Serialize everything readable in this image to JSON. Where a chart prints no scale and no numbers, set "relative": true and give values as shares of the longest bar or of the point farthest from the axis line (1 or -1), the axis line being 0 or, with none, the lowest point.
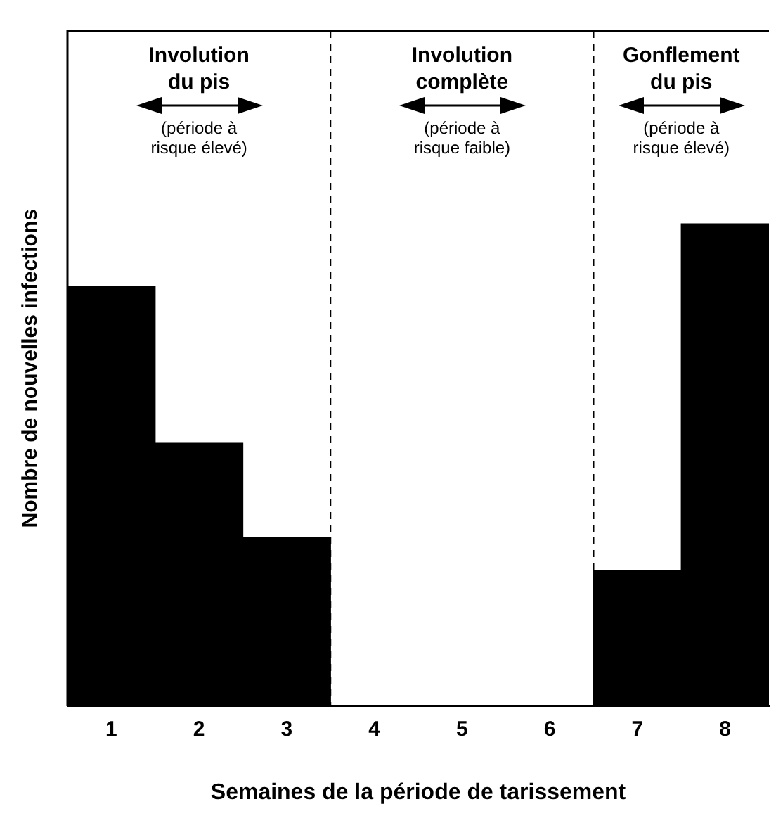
{
  "chart_data": {
    "type": "bar",
    "relative": true,
    "xlabel": "Semaines de la période de tarissement",
    "ylabel": "Nombre de nouvelles infections",
    "categories": [
      "1",
      "2",
      "3",
      "4",
      "5",
      "6",
      "7",
      "8"
    ],
    "values": [
      0.87,
      0.545,
      0.35,
      0,
      0,
      0,
      0.28,
      1
    ],
    "color": "#000000",
    "grid": false,
    "legend": false,
    "annotations": [
      "Involution du pis",
      "(période à risque élevé)",
      "Involution complète",
      "(période à risque faible)",
      "Gonflement du pis",
      "(période à risque élevé)"
    ]
  }
}
